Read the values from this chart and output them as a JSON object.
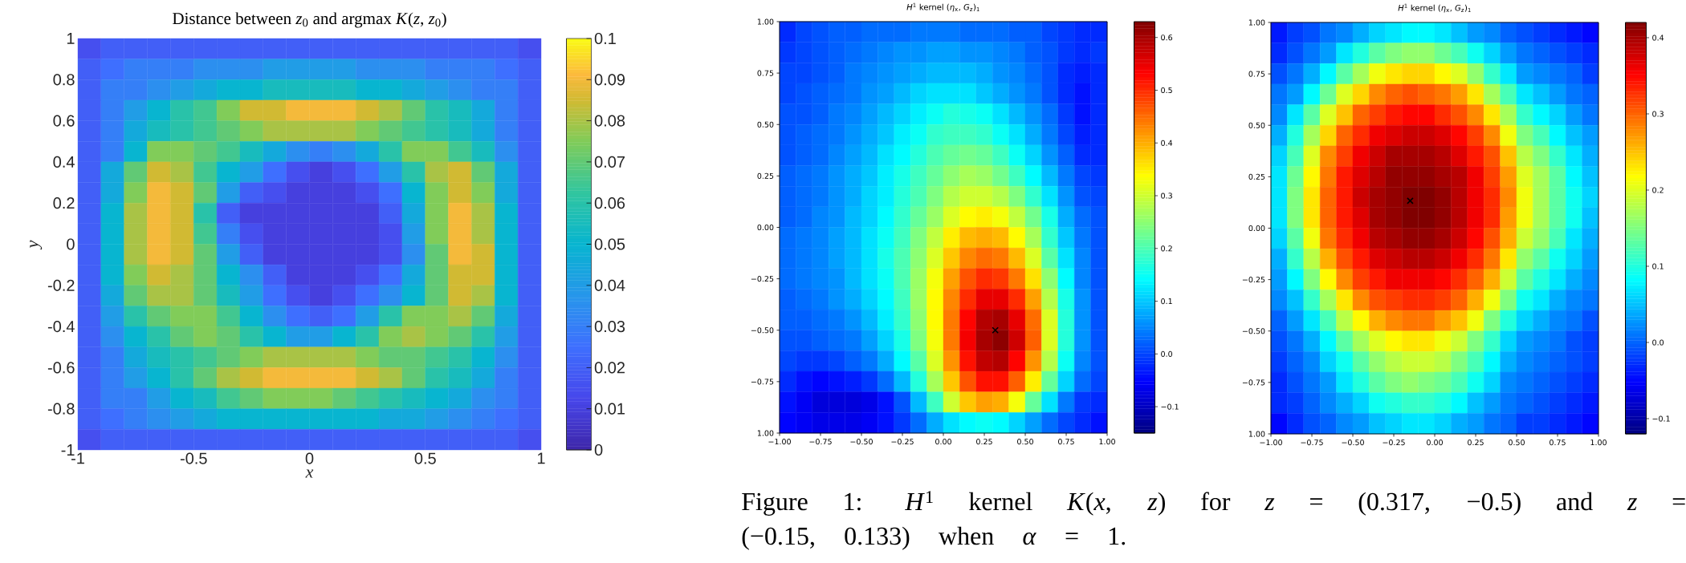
{
  "chart_data": [
    {
      "type": "heatmap",
      "title": "Distance between *z*$_{0}$ and argmax *K*(*z*, *z*$_{0}$)",
      "xlabel": "x",
      "ylabel": "y",
      "x": [
        -0.95,
        -0.85,
        -0.75,
        -0.65,
        -0.55,
        -0.45,
        -0.35,
        -0.25,
        -0.15,
        -0.05,
        0.05,
        0.15,
        0.25,
        0.35,
        0.45,
        0.55,
        0.65,
        0.75,
        0.85,
        0.95
      ],
      "xlim": [
        -1,
        1
      ],
      "ylim": [
        -1,
        1
      ],
      "xticks": [
        -1,
        -0.5,
        0,
        0.5,
        1
      ],
      "yticks": [
        -1,
        -0.8,
        -0.6,
        -0.4,
        -0.2,
        0,
        0.2,
        0.4,
        0.6,
        0.8,
        1
      ],
      "clim": [
        0,
        0.1
      ],
      "cticks": [
        0,
        0.01,
        0.02,
        0.03,
        0.04,
        0.05,
        0.06,
        0.07,
        0.08,
        0.09,
        0.1
      ],
      "cells": [
        [
          0.015,
          0.02,
          0.02,
          0.02,
          0.02,
          0.02,
          0.02,
          0.02,
          0.02,
          0.02,
          0.02,
          0.02,
          0.02,
          0.02,
          0.02,
          0.02,
          0.02,
          0.02,
          0.02,
          0.015
        ],
        [
          0.02,
          0.025,
          0.03,
          0.03,
          0.03,
          0.035,
          0.035,
          0.035,
          0.04,
          0.04,
          0.04,
          0.04,
          0.035,
          0.035,
          0.035,
          0.03,
          0.03,
          0.03,
          0.025,
          0.02
        ],
        [
          0.02,
          0.03,
          0.03,
          0.035,
          0.04,
          0.045,
          0.05,
          0.05,
          0.055,
          0.055,
          0.055,
          0.055,
          0.05,
          0.05,
          0.045,
          0.04,
          0.035,
          0.03,
          0.03,
          0.02
        ],
        [
          0.02,
          0.03,
          0.04,
          0.05,
          0.06,
          0.065,
          0.075,
          0.085,
          0.085,
          0.09,
          0.09,
          0.09,
          0.085,
          0.08,
          0.07,
          0.06,
          0.055,
          0.045,
          0.03,
          0.02
        ],
        [
          0.02,
          0.03,
          0.045,
          0.055,
          0.06,
          0.065,
          0.07,
          0.075,
          0.08,
          0.08,
          0.08,
          0.08,
          0.075,
          0.07,
          0.065,
          0.06,
          0.055,
          0.045,
          0.03,
          0.02
        ],
        [
          0.02,
          0.03,
          0.05,
          0.075,
          0.075,
          0.07,
          0.065,
          0.055,
          0.045,
          0.035,
          0.03,
          0.035,
          0.045,
          0.06,
          0.075,
          0.075,
          0.065,
          0.055,
          0.035,
          0.02
        ],
        [
          0.02,
          0.045,
          0.07,
          0.085,
          0.08,
          0.065,
          0.05,
          0.04,
          0.025,
          0.015,
          0.01,
          0.015,
          0.025,
          0.04,
          0.06,
          0.08,
          0.085,
          0.07,
          0.045,
          0.02
        ],
        [
          0.02,
          0.045,
          0.075,
          0.09,
          0.085,
          0.07,
          0.04,
          0.02,
          0.015,
          0.01,
          0.01,
          0.01,
          0.015,
          0.025,
          0.05,
          0.075,
          0.085,
          0.075,
          0.045,
          0.02
        ],
        [
          0.02,
          0.05,
          0.08,
          0.09,
          0.085,
          0.06,
          0.02,
          0.01,
          0.01,
          0.01,
          0.01,
          0.01,
          0.01,
          0.02,
          0.045,
          0.075,
          0.09,
          0.08,
          0.05,
          0.02
        ],
        [
          0.02,
          0.05,
          0.08,
          0.09,
          0.085,
          0.065,
          0.03,
          0.015,
          0.01,
          0.01,
          0.01,
          0.01,
          0.01,
          0.015,
          0.04,
          0.075,
          0.09,
          0.08,
          0.05,
          0.02
        ],
        [
          0.02,
          0.05,
          0.08,
          0.09,
          0.085,
          0.07,
          0.04,
          0.02,
          0.01,
          0.01,
          0.01,
          0.01,
          0.01,
          0.015,
          0.035,
          0.07,
          0.09,
          0.085,
          0.05,
          0.02
        ],
        [
          0.02,
          0.05,
          0.075,
          0.085,
          0.08,
          0.07,
          0.05,
          0.035,
          0.02,
          0.01,
          0.01,
          0.01,
          0.015,
          0.025,
          0.045,
          0.07,
          0.085,
          0.085,
          0.05,
          0.02
        ],
        [
          0.02,
          0.045,
          0.07,
          0.08,
          0.08,
          0.07,
          0.055,
          0.04,
          0.025,
          0.015,
          0.01,
          0.015,
          0.025,
          0.035,
          0.05,
          0.07,
          0.085,
          0.08,
          0.05,
          0.02
        ],
        [
          0.02,
          0.04,
          0.06,
          0.07,
          0.075,
          0.075,
          0.065,
          0.05,
          0.035,
          0.025,
          0.02,
          0.025,
          0.04,
          0.06,
          0.075,
          0.075,
          0.08,
          0.07,
          0.045,
          0.02
        ],
        [
          0.02,
          0.035,
          0.05,
          0.06,
          0.07,
          0.075,
          0.07,
          0.06,
          0.05,
          0.04,
          0.04,
          0.05,
          0.06,
          0.075,
          0.08,
          0.075,
          0.07,
          0.06,
          0.04,
          0.02
        ],
        [
          0.02,
          0.03,
          0.045,
          0.055,
          0.06,
          0.065,
          0.07,
          0.075,
          0.08,
          0.08,
          0.08,
          0.08,
          0.075,
          0.07,
          0.07,
          0.065,
          0.06,
          0.05,
          0.035,
          0.02
        ],
        [
          0.02,
          0.03,
          0.04,
          0.05,
          0.06,
          0.07,
          0.08,
          0.085,
          0.09,
          0.09,
          0.09,
          0.09,
          0.085,
          0.08,
          0.07,
          0.06,
          0.055,
          0.045,
          0.03,
          0.02
        ],
        [
          0.02,
          0.03,
          0.03,
          0.04,
          0.05,
          0.055,
          0.065,
          0.07,
          0.075,
          0.075,
          0.075,
          0.07,
          0.065,
          0.06,
          0.055,
          0.05,
          0.045,
          0.035,
          0.03,
          0.02
        ],
        [
          0.02,
          0.025,
          0.03,
          0.035,
          0.04,
          0.045,
          0.05,
          0.05,
          0.05,
          0.05,
          0.05,
          0.05,
          0.05,
          0.045,
          0.045,
          0.04,
          0.035,
          0.03,
          0.025,
          0.02
        ],
        [
          0.015,
          0.02,
          0.02,
          0.02,
          0.02,
          0.02,
          0.02,
          0.02,
          0.02,
          0.02,
          0.02,
          0.02,
          0.02,
          0.02,
          0.02,
          0.02,
          0.02,
          0.02,
          0.02,
          0.015
        ]
      ]
    },
    {
      "type": "heatmap",
      "title": "*H*$^{1}$ kernel (*η*$_{x}$, *G*$_{z}$)$_{1}$",
      "x": [
        -0.95,
        -0.85,
        -0.75,
        -0.65,
        -0.55,
        -0.45,
        -0.35,
        -0.25,
        -0.15,
        -0.05,
        0.05,
        0.15,
        0.25,
        0.35,
        0.45,
        0.55,
        0.65,
        0.75,
        0.85,
        0.95
      ],
      "xlim": [
        -1,
        1
      ],
      "ylim": [
        -1,
        1
      ],
      "xticks": [
        {
          "value": -1,
          "label": "−1.00"
        },
        {
          "value": -0.75,
          "label": "−0.75"
        },
        {
          "value": -0.5,
          "label": "−0.50"
        },
        {
          "value": -0.25,
          "label": "−0.25"
        },
        {
          "value": 0,
          "label": "0.00"
        },
        {
          "value": 0.25,
          "label": "0.25"
        },
        {
          "value": 0.5,
          "label": "0.50"
        },
        {
          "value": 0.75,
          "label": "0.75"
        },
        {
          "value": 1,
          "label": "1.00"
        }
      ],
      "yticks": [
        {
          "value": -1,
          "label": "1.00"
        },
        {
          "value": -0.75,
          "label": "−0.75"
        },
        {
          "value": -0.5,
          "label": "−0.50"
        },
        {
          "value": -0.25,
          "label": "−0.25"
        },
        {
          "value": 0,
          "label": "0.00"
        },
        {
          "value": 0.25,
          "label": "0.25"
        },
        {
          "value": 0.5,
          "label": "0.50"
        },
        {
          "value": 0.75,
          "label": "0.75"
        },
        {
          "value": 1,
          "label": "1.00"
        }
      ],
      "clim": [
        -0.15,
        0.63
      ],
      "cticks": [
        {
          "value": -0.1,
          "label": "−0.1"
        },
        {
          "value": 0,
          "label": "0.0"
        },
        {
          "value": 0.1,
          "label": "0.1"
        },
        {
          "value": 0.2,
          "label": "0.2"
        },
        {
          "value": 0.3,
          "label": "0.3"
        },
        {
          "value": 0.4,
          "label": "0.4"
        },
        {
          "value": 0.5,
          "label": "0.5"
        },
        {
          "value": 0.6,
          "label": "0.6"
        }
      ],
      "cells": [
        [
          -0.02,
          0.0,
          0.01,
          0.02,
          0.02,
          0.03,
          0.03,
          0.03,
          0.04,
          0.04,
          0.04,
          0.03,
          0.03,
          0.03,
          0.02,
          0.02,
          0.0,
          -0.01,
          -0.02,
          -0.02
        ],
        [
          -0.01,
          0.0,
          0.01,
          0.02,
          0.03,
          0.04,
          0.05,
          0.06,
          0.06,
          0.07,
          0.07,
          0.06,
          0.06,
          0.05,
          0.04,
          0.02,
          0.01,
          -0.01,
          -0.02,
          -0.01
        ],
        [
          0.0,
          0.0,
          0.01,
          0.02,
          0.04,
          0.05,
          0.06,
          0.07,
          0.08,
          0.09,
          0.09,
          0.09,
          0.08,
          0.06,
          0.05,
          0.03,
          0.01,
          -0.02,
          -0.03,
          -0.02
        ],
        [
          0.0,
          0.01,
          0.02,
          0.03,
          0.04,
          0.06,
          0.07,
          0.09,
          0.11,
          0.12,
          0.12,
          0.12,
          0.1,
          0.08,
          0.06,
          0.04,
          0.01,
          -0.02,
          -0.04,
          -0.02
        ],
        [
          0.01,
          0.01,
          0.02,
          0.04,
          0.05,
          0.07,
          0.09,
          0.11,
          0.13,
          0.15,
          0.17,
          0.16,
          0.15,
          0.12,
          0.09,
          0.06,
          0.03,
          -0.01,
          -0.04,
          -0.02
        ],
        [
          0.01,
          0.02,
          0.03,
          0.04,
          0.06,
          0.08,
          0.1,
          0.13,
          0.15,
          0.18,
          0.19,
          0.19,
          0.18,
          0.15,
          0.12,
          0.08,
          0.04,
          0.0,
          -0.03,
          -0.02
        ],
        [
          0.01,
          0.02,
          0.03,
          0.05,
          0.07,
          0.09,
          0.12,
          0.14,
          0.17,
          0.2,
          0.22,
          0.23,
          0.22,
          0.19,
          0.15,
          0.11,
          0.06,
          0.02,
          -0.02,
          -0.02
        ],
        [
          0.02,
          0.03,
          0.04,
          0.06,
          0.08,
          0.1,
          0.13,
          0.16,
          0.19,
          0.22,
          0.25,
          0.27,
          0.26,
          0.23,
          0.19,
          0.14,
          0.09,
          0.04,
          0.0,
          -0.01
        ],
        [
          0.02,
          0.03,
          0.04,
          0.06,
          0.08,
          0.11,
          0.13,
          0.17,
          0.2,
          0.24,
          0.28,
          0.3,
          0.3,
          0.28,
          0.24,
          0.18,
          0.12,
          0.06,
          0.01,
          0.0
        ],
        [
          0.02,
          0.03,
          0.05,
          0.06,
          0.09,
          0.11,
          0.14,
          0.18,
          0.22,
          0.26,
          0.31,
          0.34,
          0.35,
          0.33,
          0.29,
          0.23,
          0.16,
          0.08,
          0.03,
          0.01
        ],
        [
          0.03,
          0.04,
          0.05,
          0.07,
          0.09,
          0.12,
          0.15,
          0.19,
          0.24,
          0.29,
          0.35,
          0.39,
          0.4,
          0.39,
          0.34,
          0.27,
          0.18,
          0.1,
          0.04,
          0.01
        ],
        [
          0.03,
          0.04,
          0.05,
          0.07,
          0.09,
          0.12,
          0.16,
          0.2,
          0.25,
          0.31,
          0.38,
          0.43,
          0.45,
          0.44,
          0.39,
          0.31,
          0.21,
          0.12,
          0.05,
          0.01
        ],
        [
          0.03,
          0.04,
          0.05,
          0.06,
          0.09,
          0.12,
          0.15,
          0.2,
          0.26,
          0.33,
          0.41,
          0.47,
          0.5,
          0.49,
          0.44,
          0.36,
          0.25,
          0.14,
          0.05,
          0.01
        ],
        [
          0.02,
          0.03,
          0.04,
          0.06,
          0.08,
          0.11,
          0.14,
          0.19,
          0.26,
          0.34,
          0.43,
          0.5,
          0.55,
          0.55,
          0.5,
          0.41,
          0.28,
          0.16,
          0.06,
          0.01
        ],
        [
          0.02,
          0.02,
          0.03,
          0.04,
          0.06,
          0.09,
          0.13,
          0.18,
          0.25,
          0.34,
          0.44,
          0.53,
          0.59,
          0.6,
          0.55,
          0.45,
          0.31,
          0.17,
          0.06,
          0.01
        ],
        [
          0.01,
          0.01,
          0.02,
          0.03,
          0.04,
          0.07,
          0.11,
          0.16,
          0.24,
          0.33,
          0.44,
          0.54,
          0.6,
          0.62,
          0.57,
          0.46,
          0.31,
          0.17,
          0.06,
          0.01
        ],
        [
          0.0,
          -0.01,
          -0.01,
          0.0,
          0.02,
          0.04,
          0.08,
          0.14,
          0.21,
          0.31,
          0.42,
          0.52,
          0.58,
          0.59,
          0.53,
          0.42,
          0.28,
          0.15,
          0.05,
          0.01
        ],
        [
          -0.02,
          -0.04,
          -0.05,
          -0.04,
          -0.03,
          -0.01,
          0.03,
          0.09,
          0.17,
          0.27,
          0.38,
          0.47,
          0.52,
          0.52,
          0.46,
          0.35,
          0.22,
          0.11,
          0.03,
          0.0
        ],
        [
          -0.04,
          -0.06,
          -0.08,
          -0.08,
          -0.08,
          -0.07,
          -0.04,
          0.01,
          0.09,
          0.19,
          0.3,
          0.38,
          0.41,
          0.4,
          0.33,
          0.22,
          0.12,
          0.04,
          -0.01,
          -0.02
        ],
        [
          -0.05,
          -0.06,
          -0.07,
          -0.07,
          -0.07,
          -0.06,
          -0.04,
          -0.01,
          0.03,
          0.08,
          0.12,
          0.14,
          0.15,
          0.14,
          0.11,
          0.07,
          0.03,
          0.0,
          -0.02,
          -0.04
        ]
      ],
      "series": [
        {
          "type": "scatter",
          "x": [
            0.317
          ],
          "values": [
            -0.5
          ],
          "color": "#000000"
        }
      ],
      "marker": "cross",
      "annotations": [
        "Figure 1: *H*$^{1}$ kernel *K*(*x*, *z*) for *z* = (0.317, −0.5) and *z* = (−0.15, 0.133) when *α* = 1."
      ]
    },
    {
      "type": "heatmap",
      "title": "*H*$^{1}$ kernel (*η*$_{x}$, *G*$_{z}$)$_{1}$",
      "x": [
        -0.95,
        -0.85,
        -0.75,
        -0.65,
        -0.55,
        -0.45,
        -0.35,
        -0.25,
        -0.15,
        -0.05,
        0.05,
        0.15,
        0.25,
        0.35,
        0.45,
        0.55,
        0.65,
        0.75,
        0.85,
        0.95
      ],
      "xlim": [
        -1,
        1
      ],
      "ylim": [
        -1,
        1
      ],
      "xticks": [
        {
          "value": -1,
          "label": "−1.00"
        },
        {
          "value": -0.75,
          "label": "−0.75"
        },
        {
          "value": -0.5,
          "label": "−0.50"
        },
        {
          "value": -0.25,
          "label": "−0.25"
        },
        {
          "value": 0,
          "label": "0.00"
        },
        {
          "value": 0.25,
          "label": "0.25"
        },
        {
          "value": 0.5,
          "label": "0.50"
        },
        {
          "value": 0.75,
          "label": "0.75"
        },
        {
          "value": 1,
          "label": "1.00"
        }
      ],
      "yticks": [
        {
          "value": -1,
          "label": "1.00"
        },
        {
          "value": -0.75,
          "label": "−0.75"
        },
        {
          "value": -0.5,
          "label": "−0.50"
        },
        {
          "value": -0.25,
          "label": "−0.25"
        },
        {
          "value": 0,
          "label": "0.00"
        },
        {
          "value": 0.25,
          "label": "0.25"
        },
        {
          "value": 0.5,
          "label": "0.50"
        },
        {
          "value": 0.75,
          "label": "0.75"
        },
        {
          "value": 1,
          "label": "1.00"
        }
      ],
      "clim": [
        -0.12,
        0.42
      ],
      "cticks": [
        {
          "value": -0.1,
          "label": "−0.1"
        },
        {
          "value": 0,
          "label": "0.0"
        },
        {
          "value": 0.1,
          "label": "0.1"
        },
        {
          "value": 0.2,
          "label": "0.2"
        },
        {
          "value": 0.3,
          "label": "0.3"
        },
        {
          "value": 0.4,
          "label": "0.4"
        }
      ],
      "cells": [
        [
          -0.04,
          -0.02,
          -0.01,
          0.01,
          0.02,
          0.04,
          0.06,
          0.07,
          0.08,
          0.08,
          0.07,
          0.05,
          0.03,
          0.02,
          0.0,
          -0.01,
          -0.02,
          -0.03,
          -0.04,
          -0.05
        ],
        [
          -0.03,
          -0.01,
          0.01,
          0.03,
          0.07,
          0.1,
          0.13,
          0.15,
          0.16,
          0.16,
          0.14,
          0.12,
          0.09,
          0.06,
          0.03,
          0.01,
          0.0,
          -0.01,
          -0.02,
          -0.03
        ],
        [
          -0.01,
          0.01,
          0.04,
          0.08,
          0.13,
          0.17,
          0.21,
          0.23,
          0.24,
          0.24,
          0.22,
          0.2,
          0.16,
          0.11,
          0.07,
          0.03,
          0.02,
          0.01,
          0.0,
          -0.02
        ],
        [
          0.01,
          0.03,
          0.08,
          0.14,
          0.2,
          0.24,
          0.28,
          0.3,
          0.31,
          0.3,
          0.29,
          0.27,
          0.23,
          0.17,
          0.12,
          0.07,
          0.05,
          0.03,
          0.01,
          0.0
        ],
        [
          0.02,
          0.07,
          0.13,
          0.2,
          0.25,
          0.3,
          0.32,
          0.34,
          0.35,
          0.35,
          0.33,
          0.31,
          0.28,
          0.23,
          0.17,
          0.11,
          0.08,
          0.06,
          0.03,
          0.01
        ],
        [
          0.04,
          0.1,
          0.17,
          0.24,
          0.3,
          0.33,
          0.36,
          0.37,
          0.38,
          0.38,
          0.37,
          0.35,
          0.32,
          0.28,
          0.21,
          0.15,
          0.12,
          0.08,
          0.05,
          0.03
        ],
        [
          0.06,
          0.12,
          0.2,
          0.28,
          0.32,
          0.36,
          0.38,
          0.4,
          0.4,
          0.4,
          0.39,
          0.37,
          0.34,
          0.31,
          0.25,
          0.18,
          0.15,
          0.11,
          0.07,
          0.04
        ],
        [
          0.07,
          0.14,
          0.22,
          0.29,
          0.34,
          0.37,
          0.39,
          0.41,
          0.41,
          0.41,
          0.4,
          0.39,
          0.36,
          0.32,
          0.27,
          0.2,
          0.17,
          0.13,
          0.08,
          0.05
        ],
        [
          0.07,
          0.15,
          0.23,
          0.3,
          0.34,
          0.38,
          0.4,
          0.41,
          0.42,
          0.42,
          0.41,
          0.39,
          0.36,
          0.33,
          0.28,
          0.21,
          0.17,
          0.13,
          0.09,
          0.06
        ],
        [
          0.07,
          0.15,
          0.23,
          0.3,
          0.34,
          0.37,
          0.4,
          0.41,
          0.42,
          0.42,
          0.41,
          0.39,
          0.36,
          0.33,
          0.27,
          0.21,
          0.17,
          0.13,
          0.09,
          0.05
        ],
        [
          0.06,
          0.13,
          0.21,
          0.29,
          0.33,
          0.36,
          0.39,
          0.4,
          0.41,
          0.41,
          0.4,
          0.38,
          0.35,
          0.31,
          0.26,
          0.19,
          0.16,
          0.12,
          0.07,
          0.04
        ],
        [
          0.04,
          0.11,
          0.18,
          0.26,
          0.31,
          0.34,
          0.37,
          0.38,
          0.39,
          0.39,
          0.38,
          0.36,
          0.33,
          0.29,
          0.23,
          0.16,
          0.13,
          0.09,
          0.06,
          0.03
        ],
        [
          0.03,
          0.08,
          0.15,
          0.22,
          0.28,
          0.32,
          0.34,
          0.36,
          0.36,
          0.36,
          0.35,
          0.33,
          0.3,
          0.26,
          0.19,
          0.13,
          0.1,
          0.07,
          0.04,
          0.02
        ],
        [
          0.02,
          0.05,
          0.11,
          0.17,
          0.23,
          0.28,
          0.31,
          0.32,
          0.33,
          0.33,
          0.32,
          0.3,
          0.26,
          0.21,
          0.15,
          0.09,
          0.07,
          0.04,
          0.02,
          0.01
        ],
        [
          0.0,
          0.03,
          0.07,
          0.12,
          0.18,
          0.22,
          0.26,
          0.28,
          0.29,
          0.29,
          0.27,
          0.25,
          0.21,
          0.15,
          0.1,
          0.06,
          0.04,
          0.02,
          0.01,
          -0.01
        ],
        [
          -0.01,
          0.01,
          0.04,
          0.08,
          0.13,
          0.17,
          0.2,
          0.22,
          0.23,
          0.23,
          0.21,
          0.19,
          0.15,
          0.11,
          0.06,
          0.03,
          0.02,
          0.01,
          -0.01,
          -0.02
        ],
        [
          -0.02,
          0.0,
          0.02,
          0.06,
          0.09,
          0.13,
          0.16,
          0.18,
          0.19,
          0.19,
          0.18,
          0.15,
          0.12,
          0.08,
          0.04,
          0.02,
          0.01,
          0.0,
          -0.01,
          -0.02
        ],
        [
          -0.03,
          -0.01,
          0.01,
          0.03,
          0.07,
          0.1,
          0.13,
          0.15,
          0.16,
          0.15,
          0.14,
          0.12,
          0.09,
          0.06,
          0.02,
          0.01,
          0.0,
          -0.01,
          -0.02,
          -0.03
        ],
        [
          -0.03,
          -0.02,
          0.0,
          0.02,
          0.04,
          0.06,
          0.09,
          0.1,
          0.11,
          0.11,
          0.1,
          0.08,
          0.05,
          0.03,
          0.01,
          0.0,
          -0.01,
          -0.02,
          -0.03,
          -0.04
        ],
        [
          -0.05,
          -0.03,
          -0.01,
          0.0,
          0.02,
          0.03,
          0.05,
          0.06,
          0.07,
          0.07,
          0.06,
          0.04,
          0.03,
          0.01,
          0.0,
          -0.02,
          -0.02,
          -0.03,
          -0.04,
          -0.05
        ]
      ],
      "series": [
        {
          "type": "scatter",
          "x": [
            -0.15
          ],
          "values": [
            0.133
          ],
          "color": "#000000"
        }
      ],
      "marker": "cross"
    }
  ]
}
